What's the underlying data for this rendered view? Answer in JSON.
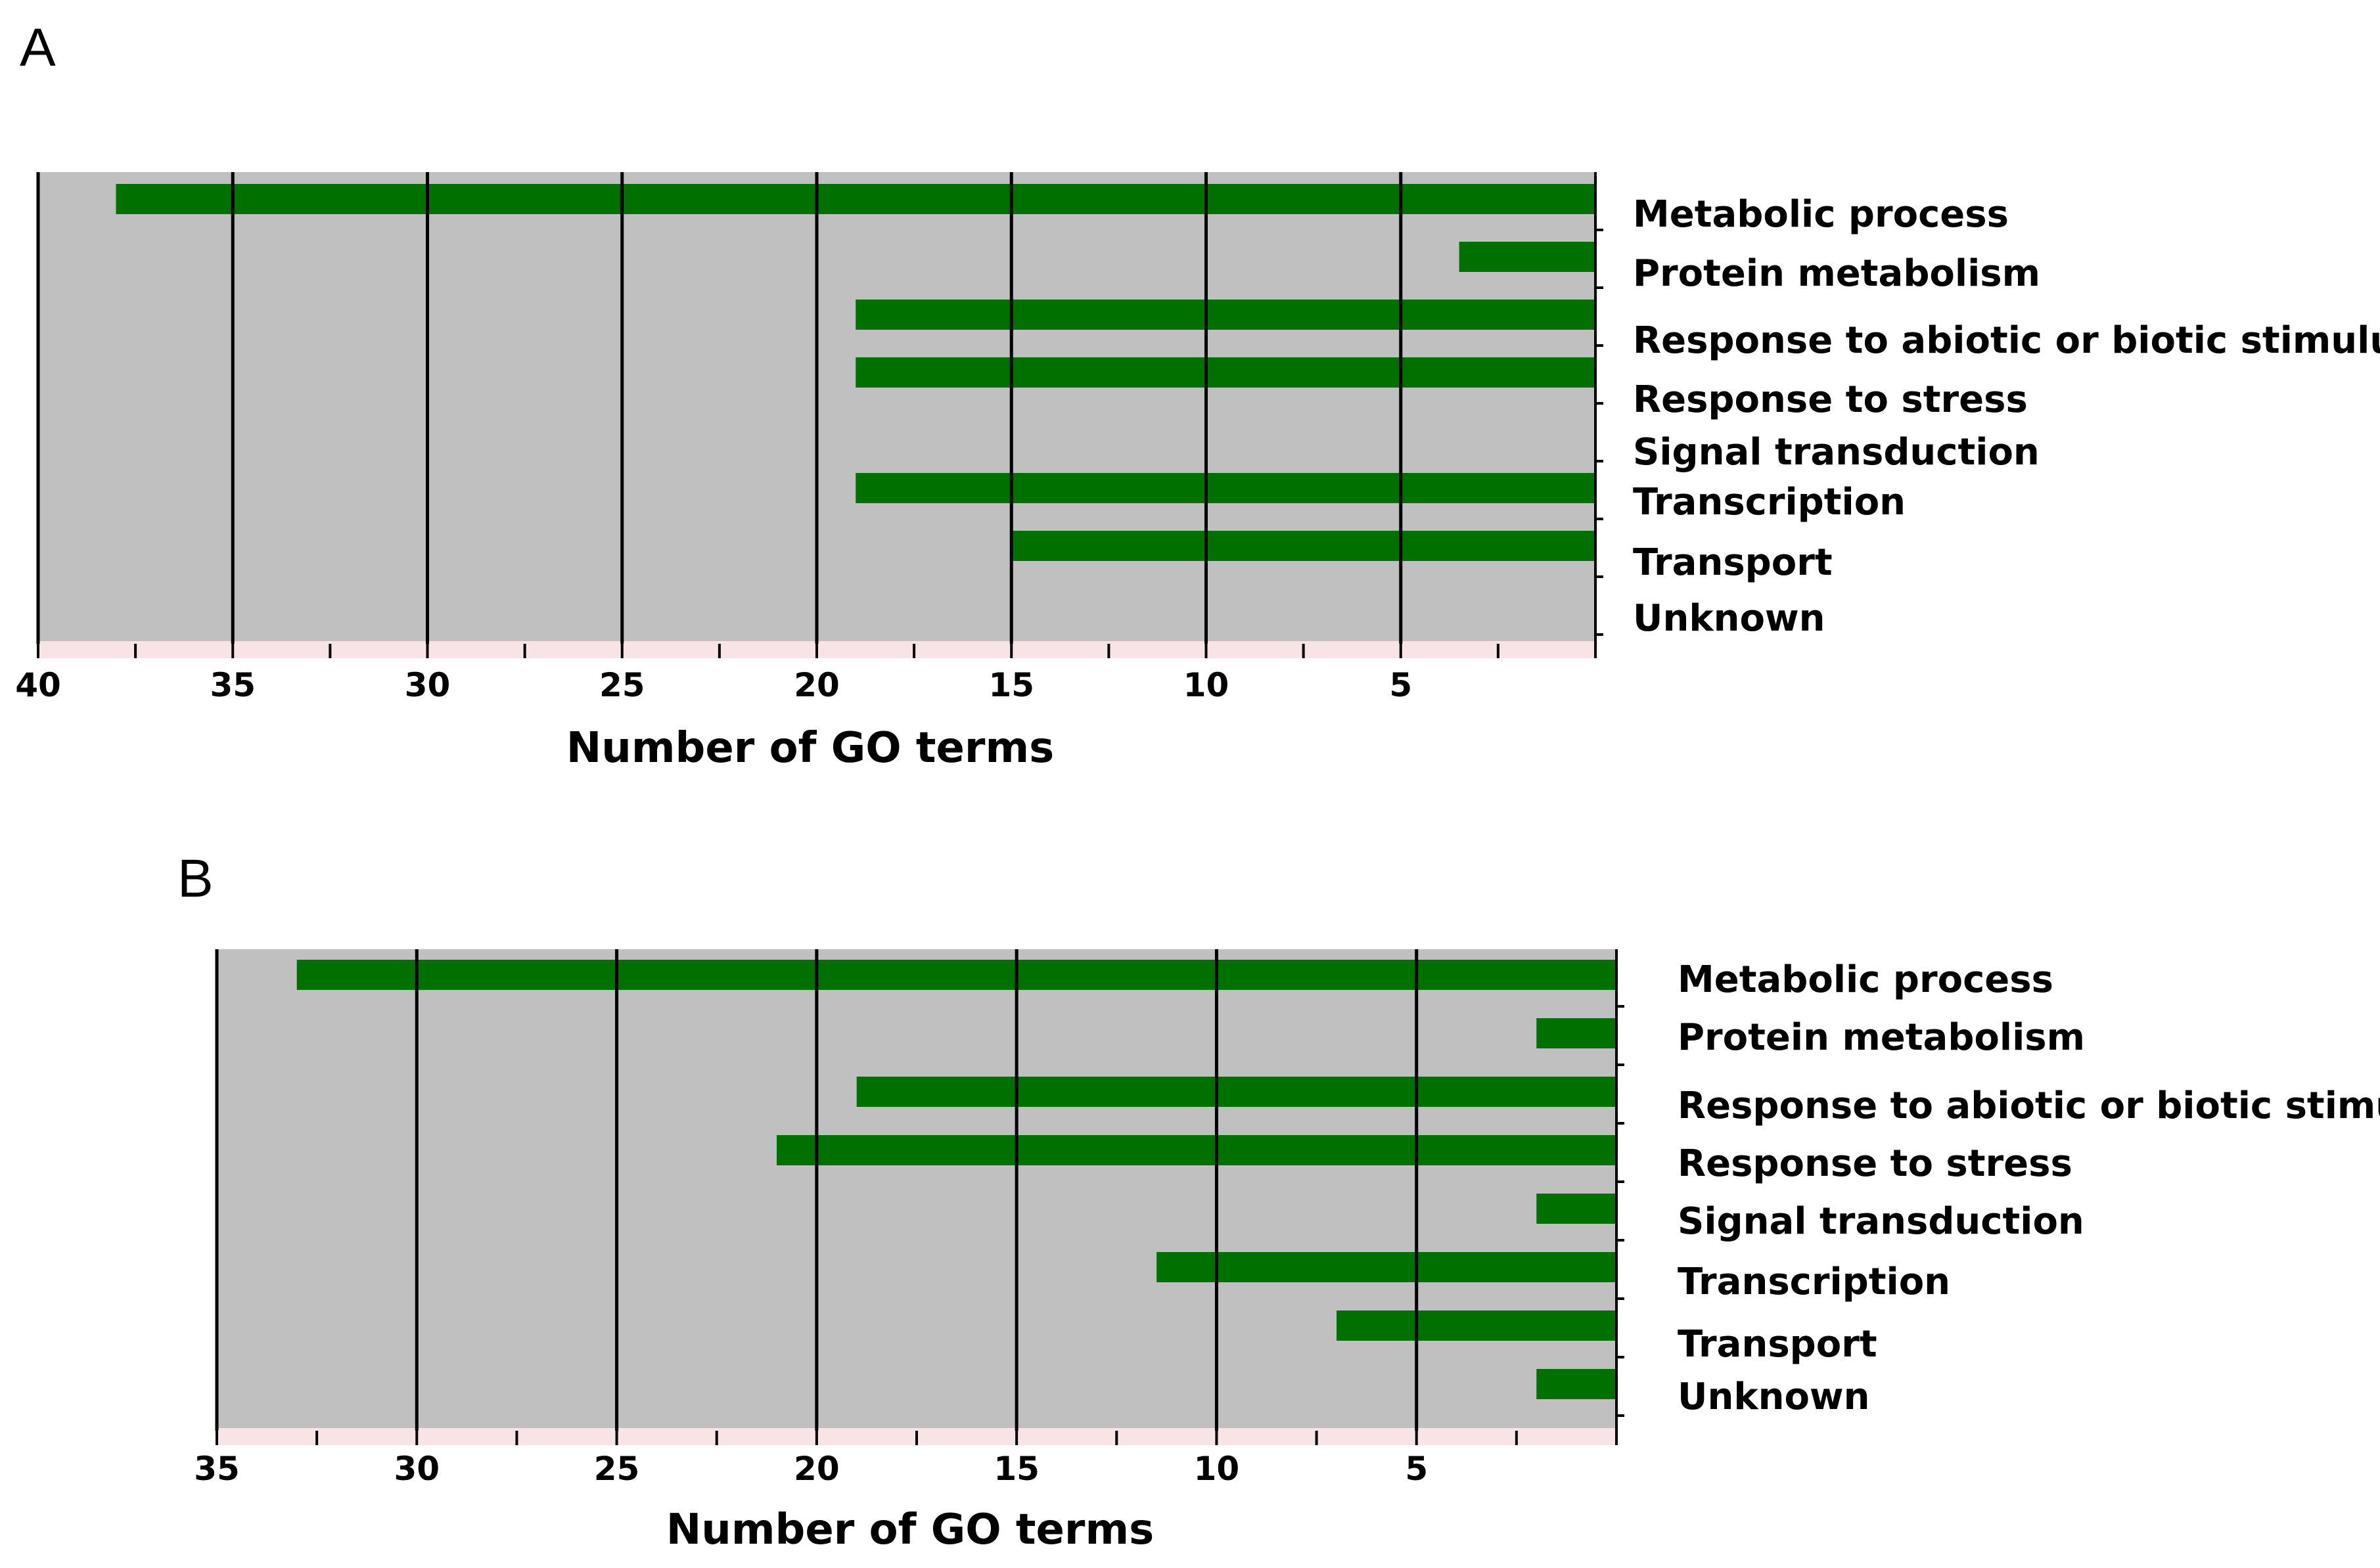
{
  "colors": {
    "plot_background": "#c0c0c0",
    "bar": "#007000",
    "gridline": "#000000",
    "axis_strip": "#f8e4e4"
  },
  "chart_data": [
    {
      "panel": "A",
      "type": "bar",
      "orientation": "horizontal",
      "x_direction": "reversed",
      "xlabel": "Number of GO terms",
      "xlim": [
        0,
        40
      ],
      "xticks": [
        40,
        35,
        30,
        25,
        20,
        15,
        10,
        5
      ],
      "gridlines": [
        40,
        35,
        30,
        25,
        20,
        15,
        10,
        5
      ],
      "categories": [
        "Metabolic process",
        "Protein metabolism",
        "Response to abiotic or biotic stimulus",
        "Response to stress",
        "Signal transduction",
        "Transcription",
        "Transport",
        "Unknown"
      ],
      "values": [
        38,
        3.5,
        19,
        19,
        0,
        19,
        15,
        0
      ]
    },
    {
      "panel": "B",
      "type": "bar",
      "orientation": "horizontal",
      "x_direction": "reversed",
      "xlabel": "Number of GO terms",
      "xlim": [
        0,
        35
      ],
      "xticks": [
        35,
        30,
        25,
        20,
        15,
        10,
        5
      ],
      "gridlines": [
        35,
        30,
        25,
        20,
        15,
        10,
        5
      ],
      "categories": [
        "Metabolic process",
        "Protein metabolism",
        "Response to abiotic or biotic stimulus",
        "Response to stress",
        "Signal transduction",
        "Transcription",
        "Transport",
        "Unknown"
      ],
      "values": [
        33,
        2,
        19,
        21,
        2,
        11.5,
        7,
        2
      ]
    }
  ]
}
